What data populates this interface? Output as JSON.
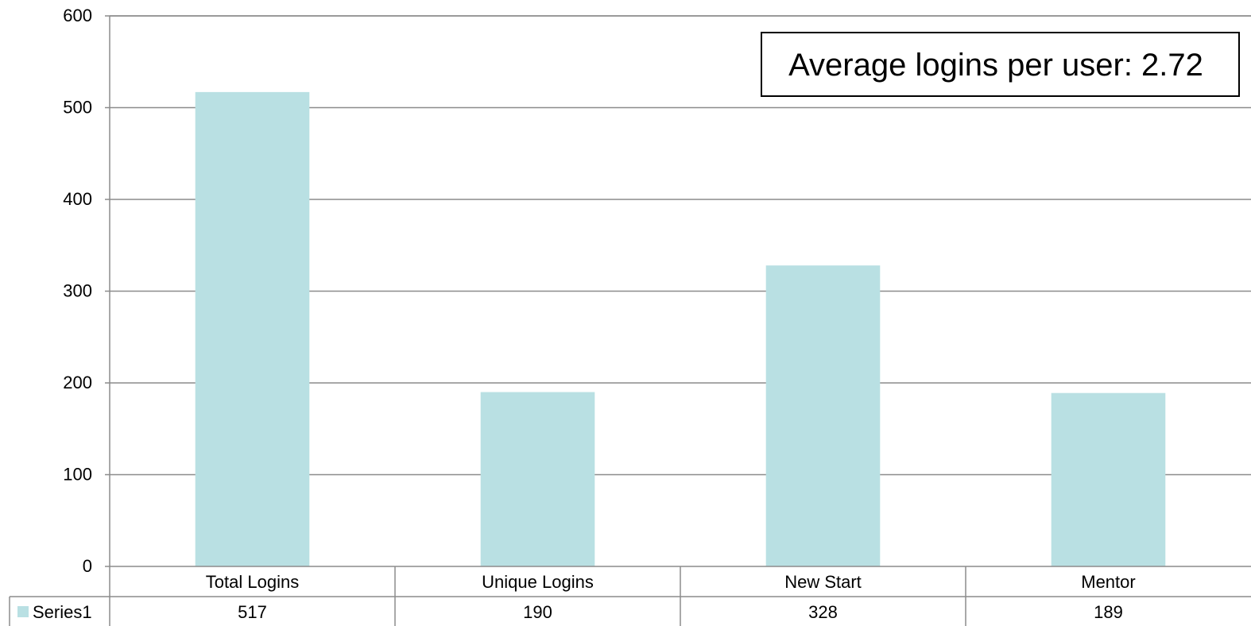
{
  "chart_data": {
    "type": "bar",
    "categories": [
      "Total Logins",
      "Unique Logins",
      "New Start",
      "Mentor"
    ],
    "series": [
      {
        "name": "Series1",
        "values": [
          517,
          190,
          328,
          189
        ]
      }
    ],
    "ylim": [
      0,
      600
    ],
    "yticks": [
      "0",
      "100",
      "200",
      "300",
      "400",
      "500",
      "600"
    ],
    "data_table": {
      "row_label": "Series1",
      "values": [
        "517",
        "190",
        "328",
        "189"
      ]
    },
    "annotation": "Average logins per user: 2.72",
    "grid": true,
    "legend": "data-table-left",
    "title": "",
    "xlabel": "",
    "ylabel": ""
  },
  "colors": {
    "bar": "#b9e0e3",
    "grid": "#8c8c8c",
    "axis": "#8c8c8c",
    "text": "#000000"
  }
}
